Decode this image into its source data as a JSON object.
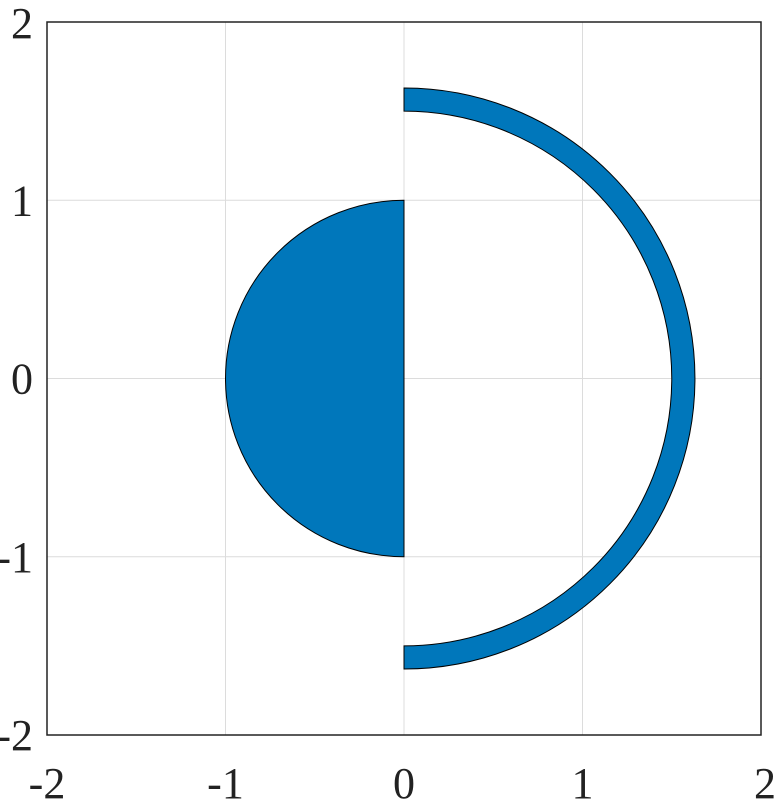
{
  "chart_data": {
    "type": "area",
    "title": "",
    "xlabel": "",
    "ylabel": "",
    "xlim": [
      -2,
      2
    ],
    "ylim": [
      -2,
      2
    ],
    "grid": true,
    "xticks": [
      -2,
      -1,
      0,
      1,
      2
    ],
    "yticks": [
      -2,
      -1,
      0,
      1,
      2
    ],
    "xtick_labels": [
      "-2",
      "-1",
      "0",
      "1",
      "2"
    ],
    "ytick_labels": [
      "-2",
      "-1",
      "0",
      "1",
      "2"
    ],
    "fill_color": "#0077bb",
    "edge_color": "#000000",
    "shapes": [
      {
        "kind": "half-disk",
        "center": [
          0,
          0
        ],
        "radius": 1,
        "side": "left"
      },
      {
        "kind": "half-annulus",
        "center": [
          0,
          0
        ],
        "inner_radius": 1.5,
        "outer_radius": 1.63,
        "side": "right"
      }
    ]
  }
}
